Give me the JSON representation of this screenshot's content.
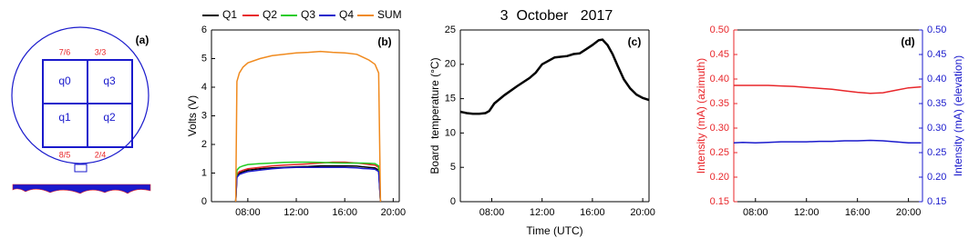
{
  "chart_data": [
    {
      "type": "diagram",
      "label": "(a)",
      "quadrants": [
        "q0",
        "q3",
        "q1",
        "q2"
      ],
      "corner_labels": [
        "7/6",
        "3/3",
        "8/5",
        "2/4"
      ]
    },
    {
      "type": "line",
      "label": "(b)",
      "ylabel": "Volts (V)",
      "x": [
        7.0,
        7.1,
        7.3,
        7.6,
        8,
        9,
        10,
        11,
        12,
        13,
        14,
        15,
        16,
        17,
        17.5,
        18,
        18.5,
        18.8,
        18.95
      ],
      "series": [
        {
          "name": "Q1",
          "color": "#000000",
          "values": [
            0,
            0.9,
            1.0,
            1.05,
            1.1,
            1.15,
            1.18,
            1.2,
            1.22,
            1.23,
            1.25,
            1.25,
            1.25,
            1.24,
            1.22,
            1.2,
            1.18,
            1.1,
            0
          ]
        },
        {
          "name": "Q2",
          "color": "#e8262a",
          "values": [
            0,
            0.95,
            1.05,
            1.1,
            1.15,
            1.2,
            1.25,
            1.28,
            1.3,
            1.32,
            1.35,
            1.38,
            1.38,
            1.35,
            1.33,
            1.3,
            1.28,
            1.2,
            0
          ]
        },
        {
          "name": "Q3",
          "color": "#22cc22",
          "values": [
            0,
            1.1,
            1.2,
            1.25,
            1.3,
            1.33,
            1.35,
            1.37,
            1.38,
            1.38,
            1.37,
            1.36,
            1.35,
            1.35,
            1.35,
            1.34,
            1.33,
            1.25,
            0
          ]
        },
        {
          "name": "Q4",
          "color": "#1a1acc",
          "values": [
            0,
            0.85,
            0.95,
            1.0,
            1.05,
            1.1,
            1.15,
            1.18,
            1.2,
            1.2,
            1.2,
            1.2,
            1.2,
            1.18,
            1.16,
            1.15,
            1.13,
            1.05,
            0
          ]
        },
        {
          "name": "SUM",
          "color": "#f08a1e",
          "values": [
            0,
            4.2,
            4.5,
            4.7,
            4.85,
            5.0,
            5.1,
            5.15,
            5.2,
            5.22,
            5.25,
            5.22,
            5.2,
            5.15,
            5.05,
            4.95,
            4.8,
            4.5,
            0
          ]
        }
      ],
      "xlim": [
        5,
        20.5
      ],
      "xticks": [
        {
          "value": 8,
          "label": "08:00"
        },
        {
          "value": 12,
          "label": "12:00"
        },
        {
          "value": 16,
          "label": "16:00"
        },
        {
          "value": 20,
          "label": "20:00"
        }
      ],
      "ylim": [
        0,
        6
      ],
      "yticks": [
        0,
        1,
        2,
        3,
        4,
        5,
        6
      ]
    },
    {
      "type": "line",
      "label": "(c)",
      "title": "3  October   2017",
      "xlabel": "Time (UTC)",
      "ylabel": "Board  temperature (°C)",
      "color": "#000000",
      "x": [
        5.5,
        6,
        6.5,
        7,
        7.5,
        7.8,
        8.2,
        9,
        10,
        11,
        11.5,
        12,
        13,
        14,
        14.5,
        15,
        15.5,
        16,
        16.5,
        16.8,
        17.2,
        17.6,
        18,
        18.5,
        19,
        19.5,
        20,
        20.5
      ],
      "values": [
        13.1,
        12.9,
        12.8,
        12.8,
        12.9,
        13.2,
        14.3,
        15.5,
        16.8,
        18,
        18.8,
        20,
        21,
        21.2,
        21.5,
        21.6,
        22.2,
        22.8,
        23.5,
        23.6,
        22.8,
        21.5,
        19.8,
        17.8,
        16.5,
        15.6,
        15.1,
        14.8
      ],
      "xlim": [
        5.5,
        20.5
      ],
      "xticks": [
        {
          "value": 8,
          "label": "08:00"
        },
        {
          "value": 12,
          "label": "12:00"
        },
        {
          "value": 16,
          "label": "16:00"
        },
        {
          "value": 20,
          "label": "20:00"
        }
      ],
      "ylim": [
        0,
        25
      ],
      "yticks": [
        0,
        5,
        10,
        15,
        20,
        25
      ]
    },
    {
      "type": "line",
      "label": "(d)",
      "ylabel": "Intensity (mA) (azimuth)",
      "y2label": "Intensity (mA) (elevation)",
      "x": [
        6.3,
        7,
        8,
        9,
        10,
        11,
        12,
        13,
        14,
        15,
        16,
        17,
        18,
        19,
        20,
        21
      ],
      "series": [
        {
          "color": "#e8262a",
          "values": [
            0.387,
            0.387,
            0.387,
            0.387,
            0.386,
            0.385,
            0.383,
            0.381,
            0.379,
            0.376,
            0.373,
            0.371,
            0.372,
            0.377,
            0.382,
            0.384
          ]
        },
        {
          "color": "#1a1acc",
          "axis": "y2",
          "values": [
            0.27,
            0.271,
            0.27,
            0.271,
            0.272,
            0.272,
            0.272,
            0.273,
            0.273,
            0.274,
            0.274,
            0.275,
            0.274,
            0.272,
            0.27,
            0.27
          ]
        }
      ],
      "xlim": [
        6.3,
        21.1
      ],
      "xticks": [
        {
          "value": 8,
          "label": "08:00"
        },
        {
          "value": 12,
          "label": "12:00"
        },
        {
          "value": 16,
          "label": "16:00"
        },
        {
          "value": 20,
          "label": "20:00"
        }
      ],
      "ylim": [
        0.15,
        0.5
      ],
      "yticks": [
        {
          "value": 0.15,
          "label": "0.15"
        },
        {
          "value": 0.2,
          "label": "0.20"
        },
        {
          "value": 0.25,
          "label": "0.25"
        },
        {
          "value": 0.3,
          "label": "0.30"
        },
        {
          "value": 0.35,
          "label": "0.35"
        },
        {
          "value": 0.4,
          "label": "0.40"
        },
        {
          "value": 0.45,
          "label": "0.45"
        },
        {
          "value": 0.5,
          "label": "0.50"
        }
      ],
      "y2lim": [
        0.15,
        0.5
      ],
      "y2ticks": [
        {
          "value": 0.15,
          "label": "0.15"
        },
        {
          "value": 0.2,
          "label": "0.20"
        },
        {
          "value": 0.25,
          "label": "0.25"
        },
        {
          "value": 0.3,
          "label": "0.30"
        },
        {
          "value": 0.35,
          "label": "0.35"
        },
        {
          "value": 0.4,
          "label": "0.40"
        },
        {
          "value": 0.45,
          "label": "0.45"
        },
        {
          "value": 0.5,
          "label": "0.50"
        }
      ]
    }
  ]
}
